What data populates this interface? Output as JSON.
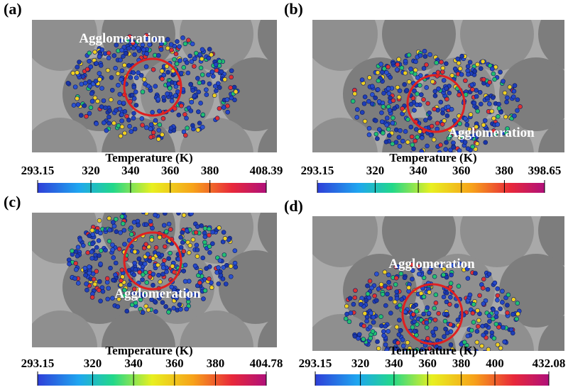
{
  "panels": [
    {
      "label": "(a)",
      "annotation": "Agglomeration",
      "colorbar": {
        "title": "Temperature (K)",
        "range": [
          293.15,
          408.39
        ],
        "ticks": [
          293.15,
          320,
          340,
          360,
          380,
          408.39
        ]
      }
    },
    {
      "label": "(b)",
      "annotation": "Agglomeration",
      "colorbar": {
        "title": "Temperature (K)",
        "range": [
          293.15,
          398.65
        ],
        "ticks": [
          293.15,
          320,
          340,
          360,
          380,
          398.65
        ]
      }
    },
    {
      "label": "(c)",
      "annotation": "Agglomeration",
      "colorbar": {
        "title": "Temperature (K)",
        "range": [
          293.15,
          404.78
        ],
        "ticks": [
          293.15,
          320,
          340,
          360,
          380,
          404.78
        ]
      }
    },
    {
      "label": "(d)",
      "annotation": "Agglomeration",
      "colorbar": {
        "title": "Temperature (K)",
        "range": [
          293.15,
          432.08
        ],
        "ticks": [
          293.15,
          320,
          340,
          360,
          380,
          400,
          432.08
        ]
      }
    }
  ]
}
